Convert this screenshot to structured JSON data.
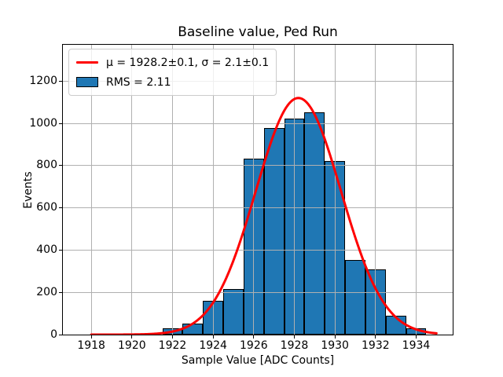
{
  "figure": {
    "title": "Baseline value, Ped Run",
    "xlabel": "Sample Value [ADC Counts]",
    "ylabel": "Events"
  },
  "legend": {
    "position": "upper left",
    "entries": [
      {
        "label": "μ = 1928.2±0.1, σ = 2.1±0.1",
        "swatch": "red-fit-line"
      },
      {
        "label": "RMS = 2.11",
        "swatch": "blue-histogram-patch"
      }
    ]
  },
  "colors": {
    "bar_fill": "#1f77b4",
    "bar_edge": "#000000",
    "fit_line": "#ff0000",
    "grid_line": "#b0b0b0",
    "legend_border": "#cccccc",
    "background": "#ffffff",
    "text": "#000000"
  },
  "chart_data": {
    "type": "bar",
    "subtype": "histogram-with-gaussian-fit",
    "title": "Baseline value, Ped Run",
    "xlabel": "Sample Value [ADC Counts]",
    "ylabel": "Events",
    "bin_centers": [
      1922,
      1923,
      1924,
      1925,
      1926,
      1927,
      1928,
      1929,
      1930,
      1931,
      1932,
      1933,
      1934
    ],
    "bin_width": 1,
    "values": [
      30,
      52,
      159,
      214,
      833,
      978,
      1022,
      1052,
      820,
      352,
      308,
      90,
      29
    ],
    "gaussian_fit": {
      "mu": 1928.2,
      "mu_err": 0.1,
      "sigma": 2.1,
      "sigma_err": 0.1,
      "amplitude": 1120,
      "x_start": 1918,
      "x_end": 1935
    },
    "rms": 2.11,
    "xticks": [
      1918,
      1920,
      1922,
      1924,
      1926,
      1928,
      1930,
      1932,
      1934
    ],
    "yticks": [
      0,
      200,
      400,
      600,
      800,
      1000,
      1200
    ],
    "xlim": [
      1916.6,
      1935.8
    ],
    "ylim": [
      0,
      1372
    ],
    "grid": true,
    "legend_position": "upper left"
  }
}
